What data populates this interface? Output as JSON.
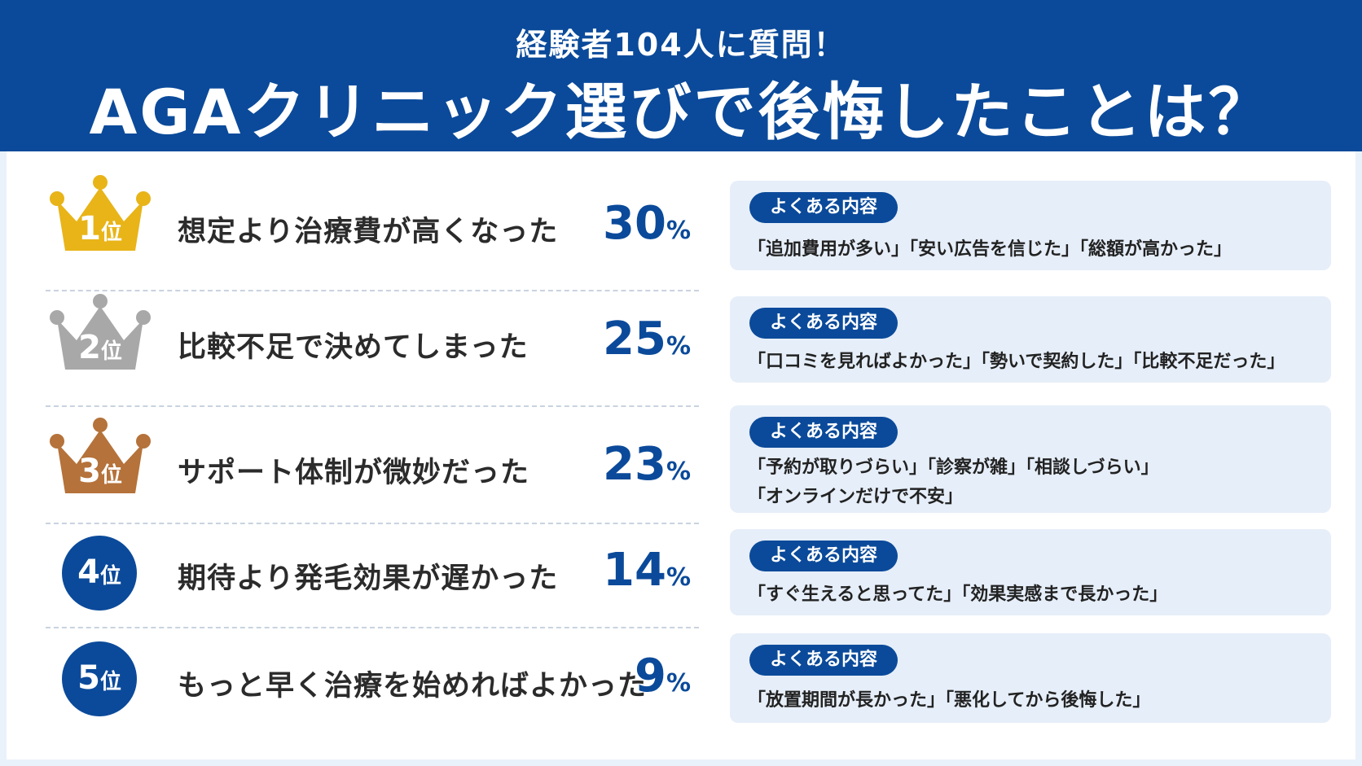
{
  "header": {
    "subtitle": "経験者104人に質問！",
    "title": "AGAクリニック選びで後悔したことは？"
  },
  "colors": {
    "brand": "#0b4a9a",
    "gold": "#e8b418",
    "silver": "#a8a8a8",
    "bronze": "#b5723a",
    "card_bg": "#e6eef9"
  },
  "items": [
    {
      "rank_num": "1",
      "rank_unit": "位",
      "badge": "gold-crown",
      "reason": "想定より治療費が高くなった",
      "percent": "30",
      "percent_unit": "%",
      "pill": "よくある内容",
      "details": [
        "「追加費用が多い」「安い広告を信じた」「総額が高かった」"
      ]
    },
    {
      "rank_num": "2",
      "rank_unit": "位",
      "badge": "silver-crown",
      "reason": "比較不足で決めてしまった",
      "percent": "25",
      "percent_unit": "%",
      "pill": "よくある内容",
      "details": [
        "「口コミを見ればよかった」「勢いで契約した」「比較不足だった」"
      ]
    },
    {
      "rank_num": "3",
      "rank_unit": "位",
      "badge": "bronze-crown",
      "reason": "サポート体制が微妙だった",
      "percent": "23",
      "percent_unit": "%",
      "pill": "よくある内容",
      "details": [
        "「予約が取りづらい」「診察が雑」「相談しづらい」",
        "「オンラインだけで不安」"
      ]
    },
    {
      "rank_num": "4",
      "rank_unit": "位",
      "badge": "blue-circle",
      "reason": "期待より発毛効果が遅かった",
      "percent": "14",
      "percent_unit": "%",
      "pill": "よくある内容",
      "details": [
        "「すぐ生えると思ってた」「効果実感まで長かった」"
      ]
    },
    {
      "rank_num": "5",
      "rank_unit": "位",
      "badge": "blue-circle",
      "reason": "もっと早く治療を始めればよかった",
      "percent": "9",
      "percent_unit": "%",
      "pill": "よくある内容",
      "details": [
        "「放置期間が長かった」「悪化してから後悔した」"
      ]
    }
  ]
}
